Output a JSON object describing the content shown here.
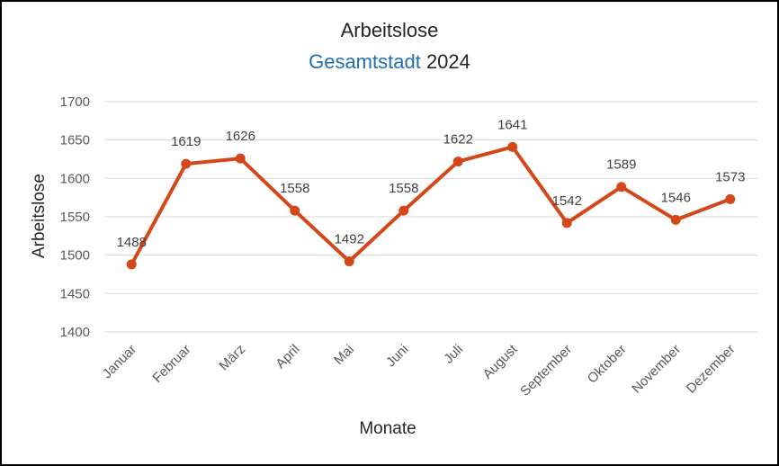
{
  "chart_data": {
    "type": "line",
    "title": "Arbeitslose",
    "subtitle_region": "Gesamtstadt",
    "subtitle_year": "2024",
    "xlabel": "Monate",
    "ylabel": "Arbeitslose",
    "ylim": [
      1400,
      1700
    ],
    "yticks": [
      1400,
      1450,
      1500,
      1550,
      1600,
      1650,
      1700
    ],
    "grid": true,
    "legend": "none",
    "categories": [
      "Januar",
      "Februar",
      "März",
      "April",
      "Mai",
      "Juni",
      "Juli",
      "August",
      "September",
      "Oktober",
      "November",
      "Dezember"
    ],
    "series": [
      {
        "values": [
          1488,
          1619,
          1626,
          1558,
          1492,
          1558,
          1622,
          1641,
          1542,
          1589,
          1546,
          1573
        ],
        "color": "#D4471A"
      }
    ],
    "subtitle_color": "#1F6FB2",
    "grid_color": "#D9D9D9"
  }
}
